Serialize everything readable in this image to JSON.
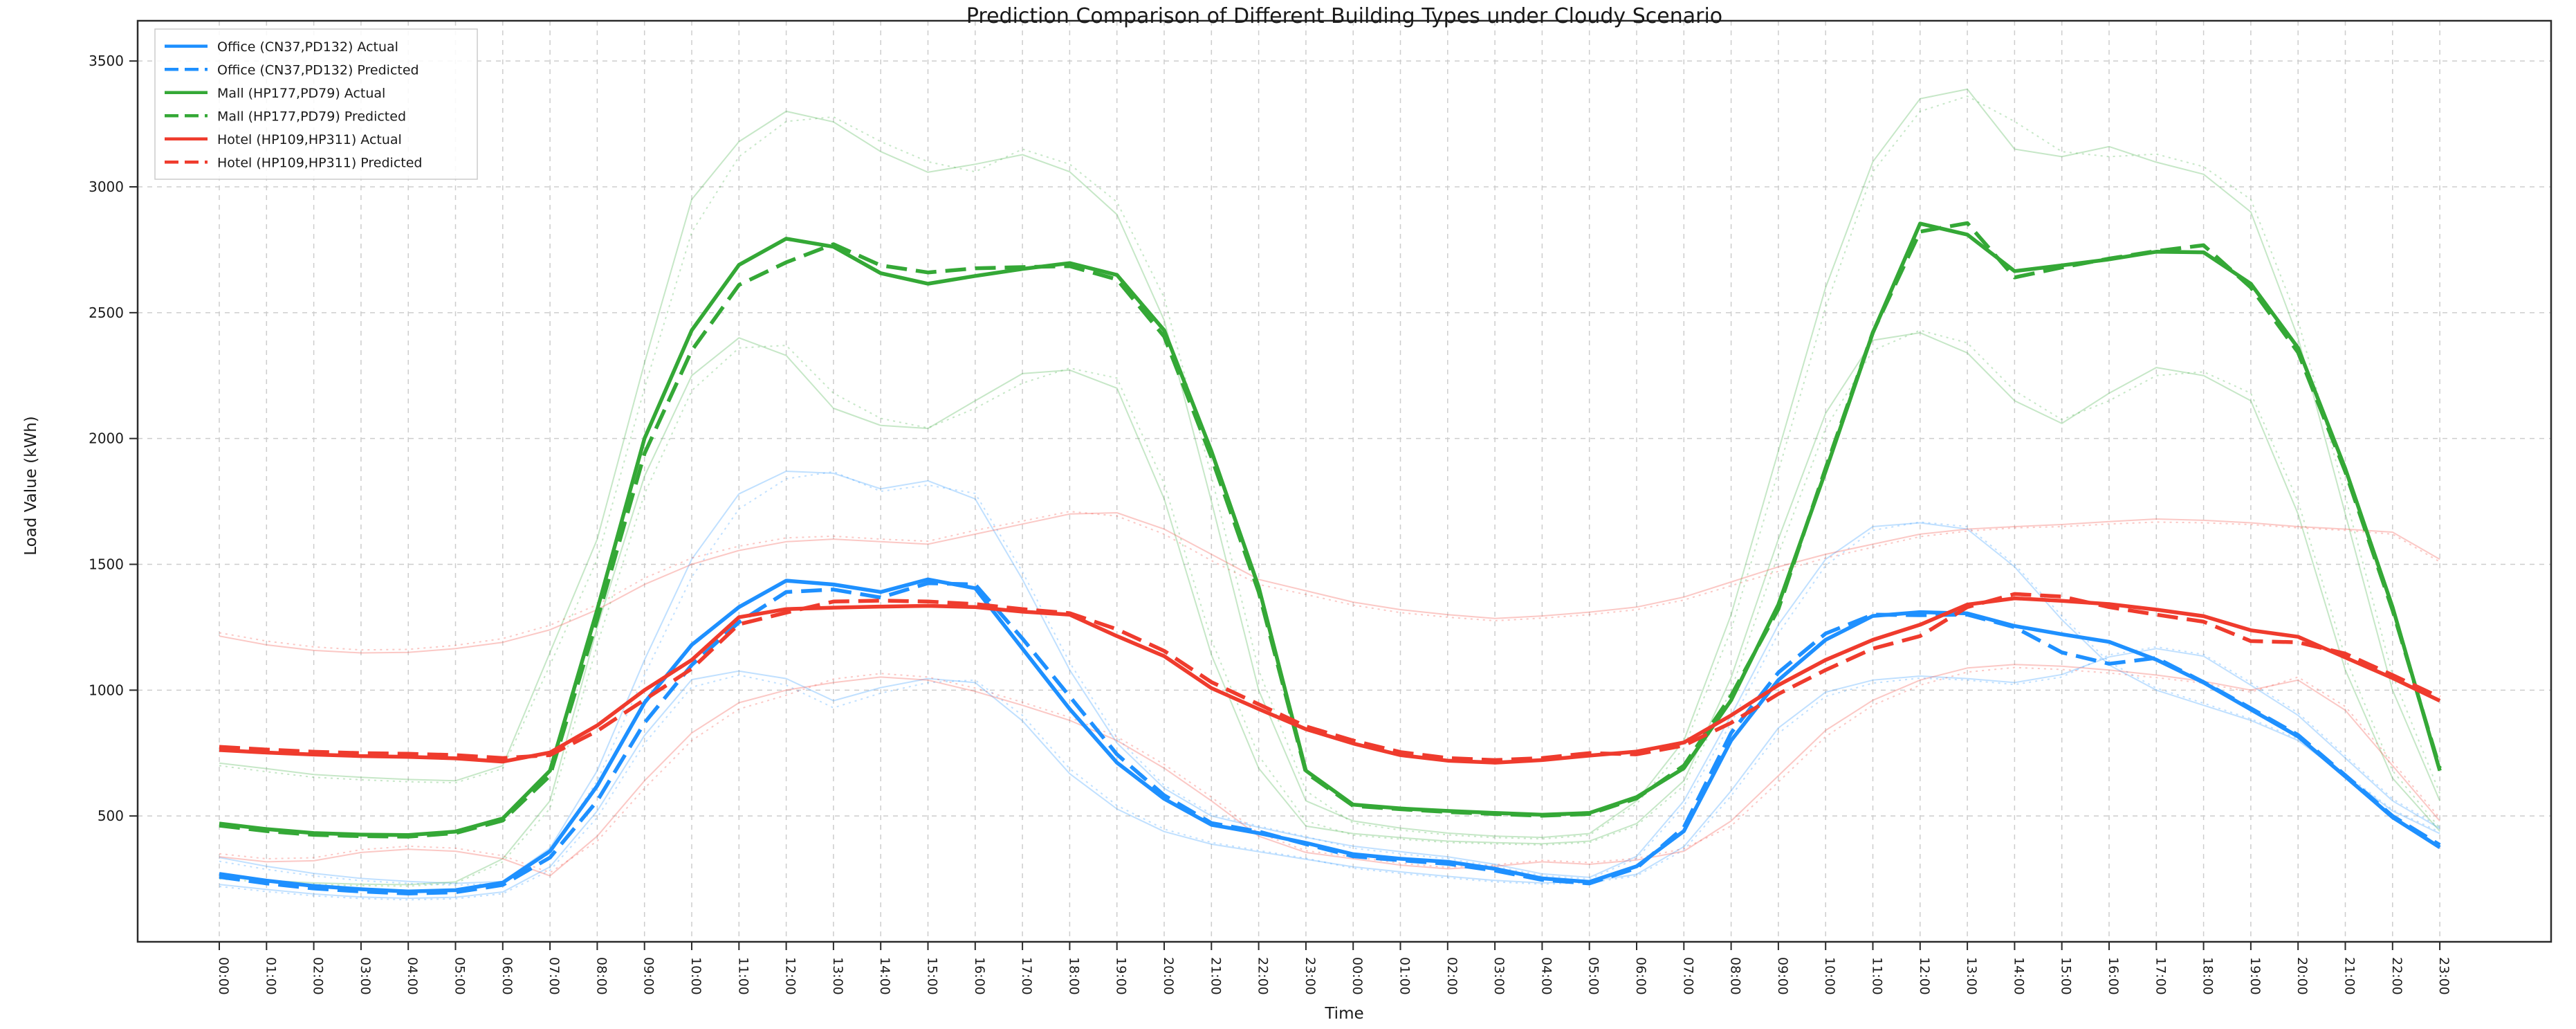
{
  "chart_data": {
    "type": "line",
    "title": "Prediction Comparison of Different Building Types under Cloudy Scenario",
    "xlabel": "Time",
    "ylabel": "Load Value (kWh)",
    "ylim": [
      0,
      3660
    ],
    "yticks": [
      500,
      1000,
      1500,
      2000,
      2500,
      3000,
      3500
    ],
    "grid": true,
    "legend_position": "upper left",
    "categories": [
      "00:00",
      "01:00",
      "02:00",
      "03:00",
      "04:00",
      "05:00",
      "06:00",
      "07:00",
      "08:00",
      "09:00",
      "10:00",
      "11:00",
      "12:00",
      "13:00",
      "14:00",
      "15:00",
      "16:00",
      "17:00",
      "18:00",
      "19:00",
      "20:00",
      "21:00",
      "22:00",
      "23:00",
      "00:00",
      "01:00",
      "02:00",
      "03:00",
      "04:00",
      "05:00",
      "06:00",
      "07:00",
      "08:00",
      "09:00",
      "10:00",
      "11:00",
      "12:00",
      "13:00",
      "14:00",
      "15:00",
      "16:00",
      "17:00",
      "18:00",
      "19:00",
      "20:00",
      "21:00",
      "22:00",
      "23:00"
    ],
    "series": [
      {
        "name": "office-light1-actual",
        "label": "",
        "color": "#1e90ff",
        "dash": "solid",
        "width": 2,
        "opacity": 0.28,
        "legend": false,
        "values": [
          335,
          300,
          272,
          252,
          240,
          232,
          240,
          372,
          680,
          1120,
          1520,
          1780,
          1870,
          1862,
          1800,
          1832,
          1760,
          1440,
          1080,
          790,
          610,
          500,
          455,
          415,
          380,
          358,
          338,
          308,
          270,
          256,
          340,
          560,
          900,
          1260,
          1520,
          1650,
          1665,
          1640,
          1490,
          1280,
          1100,
          1000,
          940,
          880,
          800,
          660,
          520,
          430
        ]
      },
      {
        "name": "office-light1-pred",
        "label": "",
        "color": "#1e90ff",
        "dash": "dotted",
        "width": 2,
        "opacity": 0.28,
        "legend": false,
        "values": [
          320,
          288,
          262,
          243,
          232,
          225,
          233,
          352,
          640,
          1060,
          1450,
          1720,
          1840,
          1868,
          1790,
          1815,
          1782,
          1470,
          1110,
          812,
          622,
          508,
          460,
          418,
          372,
          350,
          330,
          300,
          263,
          250,
          330,
          540,
          870,
          1225,
          1495,
          1635,
          1668,
          1650,
          1500,
          1295,
          1112,
          1008,
          948,
          886,
          806,
          666,
          525,
          436
        ]
      },
      {
        "name": "office-light2-actual",
        "label": "",
        "color": "#1e90ff",
        "dash": "solid",
        "width": 2,
        "opacity": 0.28,
        "legend": false,
        "values": [
          228,
          208,
          190,
          178,
          173,
          177,
          198,
          298,
          520,
          820,
          1042,
          1076,
          1046,
          958,
          1010,
          1046,
          1030,
          878,
          668,
          528,
          438,
          388,
          358,
          328,
          298,
          278,
          260,
          244,
          234,
          240,
          268,
          378,
          600,
          850,
          992,
          1040,
          1056,
          1046,
          1030,
          1062,
          1132,
          1165,
          1135,
          1020,
          900,
          730,
          560,
          450
        ]
      },
      {
        "name": "office-light2-pred",
        "label": "",
        "color": "#1e90ff",
        "dash": "dotted",
        "width": 2,
        "opacity": 0.28,
        "legend": false,
        "values": [
          220,
          200,
          183,
          172,
          167,
          171,
          191,
          284,
          494,
          788,
          1012,
          1060,
          1020,
          930,
          988,
          1030,
          1040,
          900,
          688,
          542,
          448,
          395,
          363,
          332,
          292,
          272,
          254,
          238,
          229,
          235,
          262,
          365,
          580,
          828,
          975,
          1028,
          1048,
          1040,
          1022,
          1052,
          1140,
          1172,
          1142,
          1030,
          910,
          740,
          568,
          456
        ]
      },
      {
        "name": "mall-light1-actual",
        "label": "",
        "color": "#34a836",
        "dash": "solid",
        "width": 2,
        "opacity": 0.28,
        "legend": false,
        "values": [
          710,
          688,
          665,
          654,
          645,
          640,
          700,
          1150,
          1600,
          2300,
          2950,
          3180,
          3300,
          3258,
          3140,
          3058,
          3090,
          3128,
          3060,
          2890,
          2470,
          1750,
          1000,
          560,
          480,
          452,
          432,
          420,
          415,
          430,
          560,
          800,
          1300,
          1950,
          2600,
          3100,
          3350,
          3388,
          3150,
          3120,
          3160,
          3098,
          3050,
          2900,
          2400,
          1700,
          1000,
          560
        ]
      },
      {
        "name": "mall-light1-pred",
        "label": "",
        "color": "#34a836",
        "dash": "dotted",
        "width": 2,
        "opacity": 0.28,
        "legend": false,
        "values": [
          700,
          676,
          654,
          644,
          636,
          632,
          688,
          1100,
          1520,
          2200,
          2820,
          3120,
          3260,
          3278,
          3180,
          3100,
          3060,
          3150,
          3090,
          2940,
          2560,
          1850,
          1080,
          600,
          472,
          444,
          425,
          414,
          409,
          424,
          548,
          770,
          1240,
          1870,
          2520,
          3060,
          3300,
          3360,
          3260,
          3140,
          3120,
          3130,
          3080,
          2950,
          2470,
          1770,
          1060,
          590
        ]
      },
      {
        "name": "mall-light2-actual",
        "label": "",
        "color": "#34a836",
        "dash": "solid",
        "width": 2,
        "opacity": 0.28,
        "legend": false,
        "values": [
          258,
          244,
          234,
          229,
          227,
          238,
          330,
          560,
          1250,
          1850,
          2250,
          2400,
          2330,
          2120,
          2052,
          2040,
          2150,
          2258,
          2272,
          2200,
          1760,
          1140,
          690,
          460,
          430,
          414,
          400,
          394,
          390,
          400,
          470,
          640,
          1050,
          1600,
          2100,
          2390,
          2420,
          2340,
          2150,
          2060,
          2180,
          2282,
          2250,
          2150,
          1700,
          1080,
          650,
          440
        ]
      },
      {
        "name": "mall-light2-pred",
        "label": "",
        "color": "#34a836",
        "dash": "dotted",
        "width": 2,
        "opacity": 0.28,
        "legend": false,
        "values": [
          250,
          237,
          228,
          223,
          221,
          232,
          318,
          530,
          1180,
          1780,
          2190,
          2360,
          2370,
          2180,
          2080,
          2042,
          2120,
          2220,
          2280,
          2240,
          1820,
          1200,
          740,
          480,
          424,
          408,
          395,
          389,
          385,
          395,
          462,
          620,
          1000,
          1540,
          2040,
          2350,
          2430,
          2380,
          2190,
          2075,
          2150,
          2250,
          2265,
          2180,
          1750,
          1130,
          680,
          452
        ]
      },
      {
        "name": "hotel-light1-actual",
        "label": "",
        "color": "#ef3b2d",
        "dash": "solid",
        "width": 2,
        "opacity": 0.28,
        "legend": false,
        "values": [
          1215,
          1180,
          1158,
          1148,
          1150,
          1165,
          1190,
          1240,
          1320,
          1420,
          1500,
          1555,
          1590,
          1600,
          1590,
          1580,
          1620,
          1660,
          1700,
          1705,
          1640,
          1540,
          1440,
          1395,
          1350,
          1320,
          1300,
          1285,
          1295,
          1310,
          1330,
          1370,
          1430,
          1490,
          1540,
          1580,
          1620,
          1640,
          1650,
          1658,
          1670,
          1680,
          1675,
          1665,
          1650,
          1640,
          1628,
          1520
        ]
      },
      {
        "name": "hotel-light1-pred",
        "label": "",
        "color": "#ef3b2d",
        "dash": "dotted",
        "width": 2,
        "opacity": 0.28,
        "legend": false,
        "values": [
          1228,
          1195,
          1172,
          1160,
          1162,
          1178,
          1205,
          1258,
          1340,
          1445,
          1525,
          1572,
          1605,
          1612,
          1600,
          1592,
          1635,
          1672,
          1710,
          1692,
          1620,
          1515,
          1420,
          1380,
          1338,
          1308,
          1290,
          1276,
          1286,
          1300,
          1320,
          1358,
          1415,
          1472,
          1525,
          1568,
          1610,
          1632,
          1645,
          1650,
          1660,
          1668,
          1665,
          1658,
          1645,
          1635,
          1620,
          1510
        ]
      },
      {
        "name": "hotel-light2-actual",
        "label": "",
        "color": "#ef3b2d",
        "dash": "solid",
        "width": 2,
        "opacity": 0.28,
        "legend": false,
        "values": [
          338,
          318,
          322,
          355,
          368,
          360,
          330,
          262,
          420,
          640,
          830,
          950,
          1000,
          1030,
          1052,
          1040,
          995,
          940,
          880,
          800,
          690,
          560,
          420,
          355,
          330,
          305,
          290,
          300,
          318,
          308,
          325,
          360,
          480,
          660,
          840,
          960,
          1040,
          1088,
          1102,
          1095,
          1080,
          1060,
          1035,
          1000,
          1040,
          920,
          700,
          480
        ]
      },
      {
        "name": "hotel-light2-pred",
        "label": "",
        "color": "#ef3b2d",
        "dash": "dotted",
        "width": 2,
        "opacity": 0.28,
        "legend": false,
        "values": [
          350,
          330,
          334,
          366,
          380,
          372,
          342,
          275,
          400,
          610,
          800,
          925,
          980,
          1044,
          1066,
          1052,
          1008,
          952,
          892,
          815,
          705,
          575,
          432,
          362,
          338,
          312,
          296,
          306,
          324,
          315,
          332,
          370,
          460,
          635,
          815,
          940,
          1020,
          1072,
          1090,
          1082,
          1068,
          1050,
          1028,
          992,
          1052,
          935,
          715,
          492
        ]
      },
      {
        "name": "office-actual",
        "label": "Office (CN37,PD132) Actual",
        "color": "#1e90ff",
        "dash": "solid",
        "width": 5.5,
        "opacity": 1,
        "legend": true,
        "values": [
          270,
          243,
          222,
          209,
          200,
          205,
          235,
          360,
          620,
          950,
          1180,
          1330,
          1435,
          1420,
          1390,
          1440,
          1405,
          1165,
          925,
          712,
          568,
          465,
          432,
          393,
          348,
          330,
          318,
          290,
          252,
          238,
          300,
          440,
          800,
          1040,
          1200,
          1295,
          1310,
          1305,
          1255,
          1222,
          1192,
          1121,
          1030,
          923,
          816,
          657,
          495,
          375
        ]
      },
      {
        "name": "office-pred",
        "label": "Office (CN37,PD132) Predicted",
        "color": "#1e90ff",
        "dash": "dashed",
        "width": 5.5,
        "opacity": 1,
        "legend": true,
        "values": [
          258,
          232,
          212,
          200,
          192,
          197,
          226,
          335,
          560,
          870,
          1100,
          1270,
          1390,
          1400,
          1368,
          1425,
          1420,
          1205,
          975,
          745,
          582,
          472,
          438,
          388,
          340,
          324,
          310,
          283,
          246,
          232,
          293,
          455,
          830,
          1070,
          1225,
          1300,
          1298,
          1300,
          1250,
          1150,
          1105,
          1128,
          1032,
          928,
          822,
          662,
          500,
          385
        ]
      },
      {
        "name": "mall-actual",
        "label": "Mall (HP177,PD79) Actual",
        "color": "#34a836",
        "dash": "solid",
        "width": 5.5,
        "opacity": 1,
        "legend": true,
        "values": [
          470,
          448,
          432,
          426,
          424,
          438,
          490,
          680,
          1320,
          2000,
          2430,
          2690,
          2794,
          2762,
          2657,
          2615,
          2646,
          2674,
          2697,
          2650,
          2430,
          1950,
          1410,
          680,
          545,
          530,
          520,
          512,
          505,
          512,
          575,
          690,
          960,
          1340,
          1870,
          2420,
          2854,
          2810,
          2665,
          2688,
          2712,
          2742,
          2740,
          2615,
          2360,
          1880,
          1330,
          680
        ]
      },
      {
        "name": "mall-pred",
        "label": "Mall (HP177,PD79) Predicted",
        "color": "#34a836",
        "dash": "dashed",
        "width": 5.5,
        "opacity": 1,
        "legend": true,
        "values": [
          462,
          440,
          425,
          420,
          418,
          432,
          482,
          660,
          1280,
          1940,
          2350,
          2610,
          2700,
          2772,
          2688,
          2660,
          2676,
          2681,
          2685,
          2632,
          2405,
          1925,
          1390,
          672,
          540,
          527,
          516,
          508,
          501,
          508,
          570,
          700,
          978,
          1322,
          1882,
          2422,
          2822,
          2856,
          2640,
          2680,
          2715,
          2745,
          2768,
          2600,
          2342,
          1868,
          1318,
          690
        ]
      },
      {
        "name": "hotel-actual",
        "label": "Hotel (HP109,HP311) Actual",
        "color": "#ef3b2d",
        "dash": "solid",
        "width": 5.5,
        "opacity": 1,
        "legend": true,
        "values": [
          762,
          752,
          744,
          738,
          735,
          729,
          716,
          752,
          860,
          1000,
          1120,
          1290,
          1322,
          1328,
          1332,
          1335,
          1330,
          1312,
          1300,
          1215,
          1135,
          1008,
          925,
          845,
          788,
          742,
          720,
          712,
          722,
          740,
          756,
          792,
          900,
          1020,
          1120,
          1200,
          1260,
          1340,
          1365,
          1355,
          1342,
          1320,
          1294,
          1238,
          1212,
          1130,
          1048,
          958
        ]
      },
      {
        "name": "hotel-pred",
        "label": "Hotel (HP109,HP311) Predicted",
        "color": "#ef3b2d",
        "dash": "dashed",
        "width": 5.5,
        "opacity": 1,
        "legend": true,
        "values": [
          775,
          764,
          755,
          750,
          747,
          742,
          730,
          742,
          838,
          962,
          1085,
          1262,
          1308,
          1352,
          1356,
          1352,
          1342,
          1322,
          1306,
          1242,
          1156,
          1032,
          944,
          856,
          800,
          754,
          730,
          722,
          730,
          750,
          745,
          780,
          870,
          985,
          1080,
          1165,
          1215,
          1330,
          1382,
          1372,
          1330,
          1300,
          1272,
          1195,
          1190,
          1145,
          1060,
          972
        ]
      }
    ]
  }
}
